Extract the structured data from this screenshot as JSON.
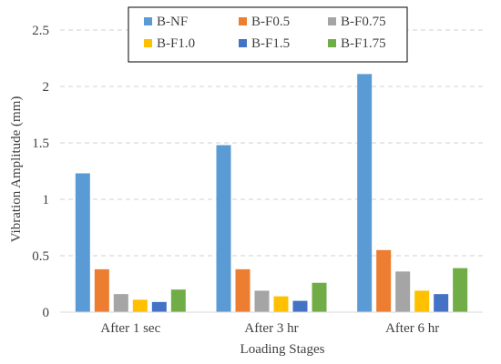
{
  "chart_data": {
    "type": "bar",
    "title": "",
    "xlabel": "Loading Stages",
    "ylabel": "Vibration Amplitude (mm)",
    "ylim": [
      0,
      2.5
    ],
    "yticks": [
      0,
      0.5,
      1,
      1.5,
      2,
      2.5
    ],
    "ytick_labels": [
      "0",
      "0.5",
      "1",
      "1.5",
      "2",
      "2.5"
    ],
    "grid": "horizontal dashed",
    "legend_position": "top",
    "categories": [
      "After 1 sec",
      "After 3 hr",
      "After 6 hr"
    ],
    "series": [
      {
        "name": "B-NF",
        "color": "#5B9BD5",
        "values": [
          1.23,
          1.48,
          2.11
        ]
      },
      {
        "name": "B-F0.5",
        "color": "#ED7D31",
        "values": [
          0.38,
          0.38,
          0.55
        ]
      },
      {
        "name": "B-F0.75",
        "color": "#A5A5A5",
        "values": [
          0.16,
          0.19,
          0.36
        ]
      },
      {
        "name": "B-F1.0",
        "color": "#FFC000",
        "values": [
          0.11,
          0.14,
          0.19
        ]
      },
      {
        "name": "B-F1.5",
        "color": "#4472C4",
        "values": [
          0.09,
          0.1,
          0.16
        ]
      },
      {
        "name": "B-F1.75",
        "color": "#70AD47",
        "values": [
          0.2,
          0.26,
          0.39
        ]
      }
    ]
  }
}
